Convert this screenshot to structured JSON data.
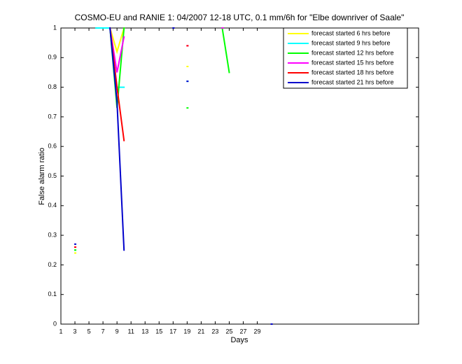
{
  "chart_data": {
    "type": "line",
    "title": "COSMO-EU and RANIE 1: 04/2007 12-18 UTC, 0.1 mm/6h for \"Elbe downriver of Saale\"",
    "xlabel": "Days",
    "ylabel": "False alarm ratio",
    "x": [
      1,
      2,
      3,
      4,
      5,
      6,
      7,
      8,
      9,
      10,
      11,
      12,
      13,
      14,
      15,
      16,
      17,
      18,
      19,
      20,
      21,
      22,
      23,
      24,
      25,
      26,
      27,
      28,
      29,
      30,
      31
    ],
    "xlim": [
      1,
      52
    ],
    "xticks": [
      1,
      3,
      5,
      7,
      9,
      11,
      13,
      15,
      17,
      19,
      21,
      23,
      25,
      27,
      29
    ],
    "ylim": [
      0,
      1
    ],
    "yticks": [
      0,
      0.1,
      0.2,
      0.3,
      0.4,
      0.5,
      0.6,
      0.7,
      0.8,
      0.9,
      1
    ],
    "series": [
      {
        "name": "forecast started 6 hrs before",
        "color": "#ffff00",
        "values": [
          null,
          null,
          0.24,
          null,
          null,
          null,
          null,
          1,
          0.92,
          1,
          null,
          null,
          null,
          null,
          null,
          null,
          null,
          null,
          0.87,
          null,
          null,
          null,
          null,
          null,
          null,
          null,
          null,
          null,
          null,
          null,
          null
        ]
      },
      {
        "name": "forecast started 9 hrs before",
        "color": "#00ffff",
        "values": [
          null,
          null,
          0.25,
          null,
          null,
          1,
          1,
          1,
          0.8,
          0.8,
          null,
          null,
          null,
          null,
          null,
          null,
          null,
          null,
          0.82,
          null,
          null,
          null,
          null,
          null,
          null,
          null,
          null,
          null,
          null,
          null,
          null
        ]
      },
      {
        "name": "forecast started 12 hrs before",
        "color": "#00ff00",
        "values": [
          null,
          null,
          0.25,
          null,
          null,
          null,
          null,
          1,
          0.73,
          1,
          null,
          null,
          null,
          null,
          null,
          null,
          null,
          null,
          0.73,
          null,
          null,
          null,
          null,
          1,
          0.85,
          null,
          null,
          null,
          null,
          null,
          null
        ]
      },
      {
        "name": "forecast started 15 hrs before",
        "color": "#ff00ff",
        "values": [
          null,
          null,
          0.26,
          null,
          null,
          null,
          null,
          1,
          0.85,
          0.97,
          null,
          null,
          null,
          null,
          null,
          null,
          null,
          null,
          0.94,
          null,
          null,
          null,
          null,
          1,
          null,
          null,
          null,
          null,
          null,
          null,
          null
        ]
      },
      {
        "name": "forecast started 18 hrs before",
        "color": "#ff0000",
        "values": [
          null,
          null,
          0.26,
          null,
          null,
          null,
          null,
          1,
          0.8,
          0.62,
          null,
          null,
          null,
          null,
          null,
          null,
          null,
          null,
          0.94,
          null,
          null,
          null,
          null,
          null,
          null,
          null,
          null,
          null,
          null,
          null,
          null
        ]
      },
      {
        "name": "forecast started 21 hrs before",
        "color": "#0000cc",
        "values": [
          null,
          null,
          0.27,
          null,
          null,
          null,
          null,
          1,
          0.75,
          0.25,
          null,
          null,
          null,
          null,
          null,
          null,
          1,
          null,
          0.82,
          null,
          null,
          null,
          null,
          null,
          null,
          null,
          null,
          null,
          null,
          null,
          0
        ]
      }
    ]
  }
}
